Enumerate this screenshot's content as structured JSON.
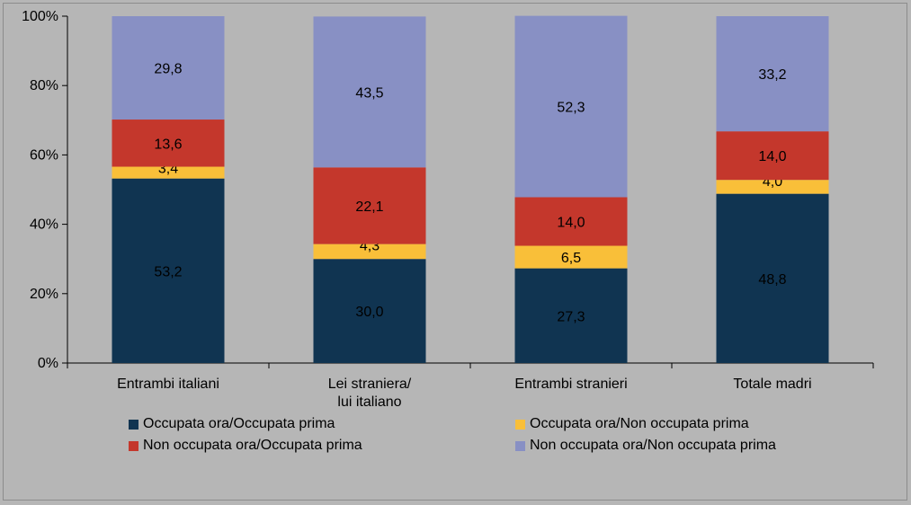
{
  "colors": {
    "background": "#b6b6b6",
    "plot_background": "#b6b6b6",
    "series": [
      "#103451",
      "#f9bf39",
      "#c4372c",
      "#8890c4"
    ]
  },
  "chart_data": {
    "type": "bar",
    "stacked": true,
    "percent_stacked": true,
    "categories": [
      "Entrambi italiani",
      "Lei straniera/\nlui italiano",
      "Entrambi stranieri",
      "Totale madri"
    ],
    "series": [
      {
        "name": "Occupata ora/Occupata prima",
        "values": [
          53.2,
          30.0,
          27.3,
          48.8
        ],
        "labels": [
          "53,2",
          "30,0",
          "27,3",
          "48,8"
        ]
      },
      {
        "name": "Occupata ora/Non occupata prima",
        "values": [
          3.4,
          4.3,
          6.5,
          4.0
        ],
        "labels": [
          "3,4",
          "4,3",
          "6,5",
          "4,0"
        ]
      },
      {
        "name": "Non occupata ora/Occupata prima",
        "values": [
          13.6,
          22.1,
          14.0,
          14.0
        ],
        "labels": [
          "13,6",
          "22,1",
          "14,0",
          "14,0"
        ]
      },
      {
        "name": "Non occupata ora/Non occupata prima",
        "values": [
          29.8,
          43.5,
          52.3,
          33.2
        ],
        "labels": [
          "29,8",
          "43,5",
          "52,3",
          "33,2"
        ]
      }
    ],
    "ylim": [
      0,
      100
    ],
    "yticks": [
      "0%",
      "20%",
      "40%",
      "60%",
      "80%",
      "100%"
    ],
    "grid": false,
    "legend_position": "bottom"
  }
}
